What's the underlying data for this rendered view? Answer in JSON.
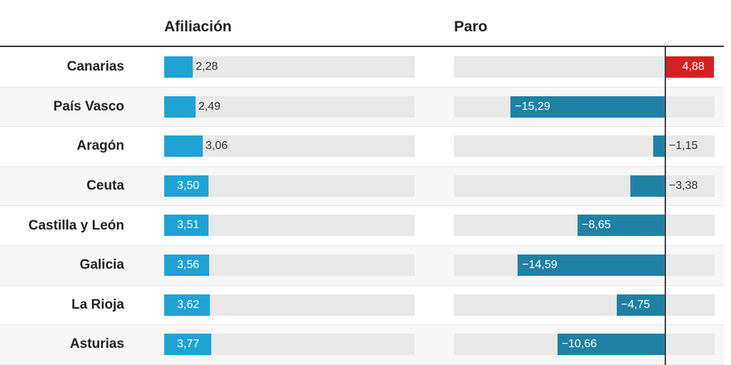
{
  "headers": {
    "afiliacion": "Afiliación",
    "paro": "Paro"
  },
  "colors": {
    "afiliacion_bar": "#1ea3d4",
    "paro_negative": "#1f82a5",
    "paro_positive": "#d42222",
    "track": "#e8e8e8"
  },
  "chart_data": {
    "type": "bar",
    "orientation": "horizontal",
    "categories": [
      "Canarias",
      "País Vasco",
      "Aragón",
      "Ceuta",
      "Castilla y León",
      "Galicia",
      "La Rioja",
      "Asturias"
    ],
    "series": [
      {
        "name": "Afiliación",
        "values": [
          2.28,
          2.49,
          3.06,
          3.5,
          3.51,
          3.56,
          3.62,
          3.77
        ],
        "labels": [
          "2,28",
          "2,49",
          "3,06",
          "3,50",
          "3,51",
          "3,56",
          "3,62",
          "3,77"
        ]
      },
      {
        "name": "Paro",
        "values": [
          4.88,
          -15.29,
          -1.15,
          -3.38,
          -8.65,
          -14.59,
          -4.75,
          -10.66
        ],
        "labels": [
          "4,88",
          "−15,29",
          "−1,15",
          "−3,38",
          "−8,65",
          "−14,59",
          "−4,75",
          "−10,66"
        ]
      }
    ],
    "xlim_afiliacion": [
      0,
      20
    ],
    "xlim_paro": [
      -21,
      5
    ]
  }
}
